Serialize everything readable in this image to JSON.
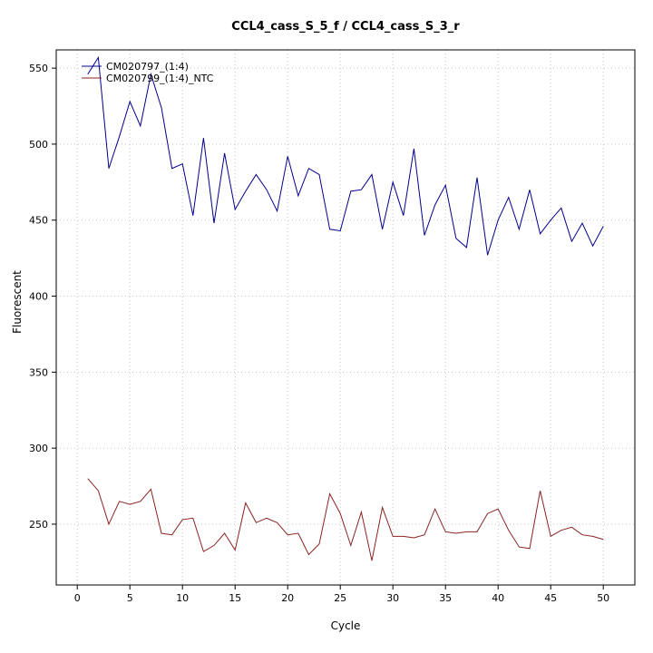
{
  "chart_data": {
    "type": "line",
    "title": "CCL4_cass_S_5_f / CCL4_cass_S_3_r",
    "xlabel": "Cycle",
    "ylabel": "Fluorescent",
    "x": [
      1,
      2,
      3,
      4,
      5,
      6,
      7,
      8,
      9,
      10,
      11,
      12,
      13,
      14,
      15,
      16,
      17,
      18,
      19,
      20,
      21,
      22,
      23,
      24,
      25,
      26,
      27,
      28,
      29,
      30,
      31,
      32,
      33,
      34,
      35,
      36,
      37,
      38,
      39,
      40,
      41,
      42,
      43,
      44,
      45,
      46,
      47,
      48,
      49,
      50
    ],
    "series": [
      {
        "name": "CM020797_(1:4)",
        "color": "#00008B",
        "values": [
          546,
          557,
          484,
          505,
          528,
          512,
          546,
          524,
          484,
          487,
          453,
          504,
          448,
          494,
          457,
          469,
          480,
          470,
          456,
          492,
          466,
          484,
          480,
          444,
          443,
          469,
          470,
          480,
          444,
          475,
          453,
          497,
          440,
          460,
          473,
          438,
          432,
          478,
          427,
          450,
          465,
          444,
          470,
          441,
          450,
          458,
          436,
          448,
          433,
          446
        ]
      },
      {
        "name": "CM020799_(1:4)_NTC",
        "color": "#8B2222",
        "values": [
          280,
          272,
          250,
          265,
          263,
          265,
          273,
          244,
          243,
          253,
          254,
          232,
          236,
          244,
          233,
          264,
          251,
          254,
          251,
          243,
          244,
          230,
          237,
          270,
          257,
          236,
          258,
          226,
          261,
          242,
          242,
          241,
          243,
          260,
          245,
          244,
          245,
          245,
          257,
          260,
          246,
          235,
          234,
          272,
          242,
          246,
          248,
          243,
          242,
          240
        ]
      }
    ],
    "x_ticks": [
      0,
      5,
      10,
      15,
      20,
      25,
      30,
      35,
      40,
      45,
      50
    ],
    "y_ticks": [
      250,
      300,
      350,
      400,
      450,
      500,
      550
    ],
    "xlim": [
      -2,
      53
    ],
    "ylim": [
      210,
      562
    ],
    "grid": true,
    "grid_color": "#c8c8c8",
    "axis_color": "#000000",
    "background": "#ffffff",
    "legend_position": "top-left"
  }
}
